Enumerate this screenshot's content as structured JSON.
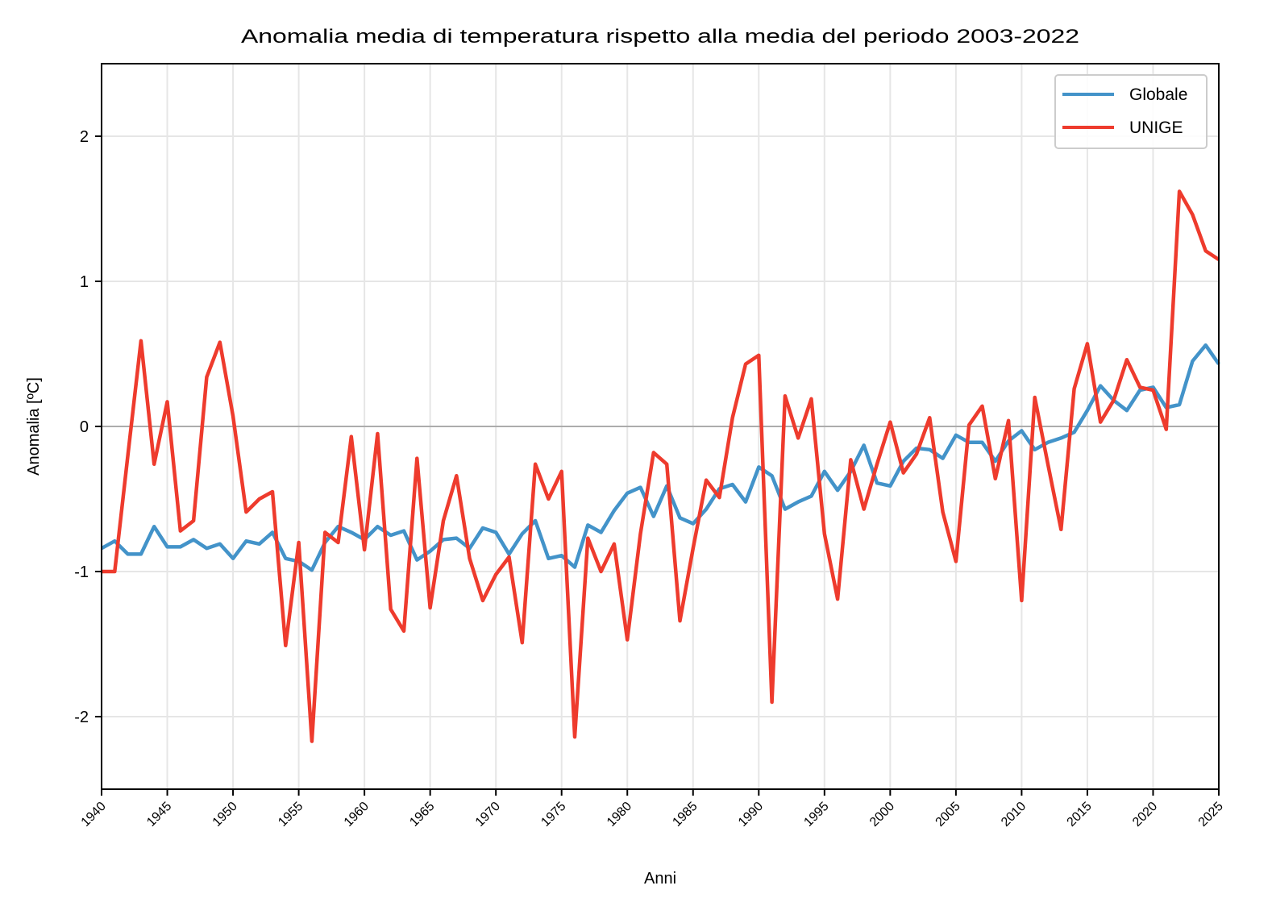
{
  "chart_data": {
    "type": "line",
    "title": "Anomalia media di temperatura rispetto alla media del periodo 2003-2022",
    "xlabel": "Anni",
    "ylabel": "Anomalia [ºC]",
    "xlim": [
      1940,
      2025
    ],
    "ylim": [
      -2.5,
      2.5
    ],
    "xticks": [
      "1940",
      "1945",
      "1950",
      "1955",
      "1960",
      "1965",
      "1970",
      "1975",
      "1980",
      "1985",
      "1990",
      "1995",
      "2000",
      "2005",
      "2010",
      "2015",
      "2020",
      "2025"
    ],
    "yticks": [
      "-2",
      "-1",
      "0",
      "1",
      "2"
    ],
    "grid": true,
    "legend_position": "top-right",
    "x_start": 1940,
    "series": [
      {
        "name": "Globale",
        "color": "#4393c9",
        "values": [
          -0.84,
          -0.79,
          -0.88,
          -0.88,
          -0.69,
          -0.83,
          -0.83,
          -0.78,
          -0.84,
          -0.81,
          -0.91,
          -0.79,
          -0.81,
          -0.73,
          -0.91,
          -0.93,
          -0.99,
          -0.8,
          -0.69,
          -0.73,
          -0.78,
          -0.69,
          -0.75,
          -0.72,
          -0.92,
          -0.86,
          -0.78,
          -0.77,
          -0.84,
          -0.7,
          -0.73,
          -0.88,
          -0.74,
          -0.65,
          -0.91,
          -0.89,
          -0.97,
          -0.68,
          -0.73,
          -0.58,
          -0.46,
          -0.42,
          -0.62,
          -0.41,
          -0.63,
          -0.67,
          -0.57,
          -0.43,
          -0.4,
          -0.52,
          -0.28,
          -0.34,
          -0.57,
          -0.52,
          -0.48,
          -0.31,
          -0.44,
          -0.31,
          -0.13,
          -0.39,
          -0.41,
          -0.24,
          -0.15,
          -0.16,
          -0.22,
          -0.06,
          -0.11,
          -0.11,
          -0.24,
          -0.1,
          -0.03,
          -0.16,
          -0.11,
          -0.08,
          -0.04,
          0.11,
          0.28,
          0.18,
          0.11,
          0.25,
          0.27,
          0.13,
          0.15,
          0.45,
          0.56,
          0.43
        ]
      },
      {
        "name": "UNIGE",
        "color": "#ee3b2d",
        "values": [
          -1.0,
          -1.0,
          -0.2,
          0.59,
          -0.26,
          0.17,
          -0.72,
          -0.65,
          0.34,
          0.58,
          0.07,
          -0.59,
          -0.5,
          -0.45,
          -1.51,
          -0.8,
          -2.17,
          -0.73,
          -0.8,
          -0.07,
          -0.85,
          -0.05,
          -1.26,
          -1.41,
          -0.22,
          -1.25,
          -0.65,
          -0.34,
          -0.91,
          -1.2,
          -1.02,
          -0.9,
          -1.49,
          -0.26,
          -0.5,
          -0.31,
          -2.14,
          -0.77,
          -1.0,
          -0.81,
          -1.47,
          -0.74,
          -0.18,
          -0.26,
          -1.34,
          -0.84,
          -0.37,
          -0.49,
          0.06,
          0.43,
          0.49,
          -1.9,
          0.21,
          -0.08,
          0.19,
          -0.74,
          -1.19,
          -0.23,
          -0.57,
          -0.26,
          0.03,
          -0.32,
          -0.19,
          0.06,
          -0.59,
          -0.93,
          0.01,
          0.14,
          -0.36,
          0.04,
          -1.2,
          0.2,
          -0.26,
          -0.71,
          0.26,
          0.57,
          0.03,
          0.18,
          0.46,
          0.27,
          0.25,
          -0.02,
          1.62,
          1.46,
          1.21,
          1.15
        ]
      }
    ]
  }
}
